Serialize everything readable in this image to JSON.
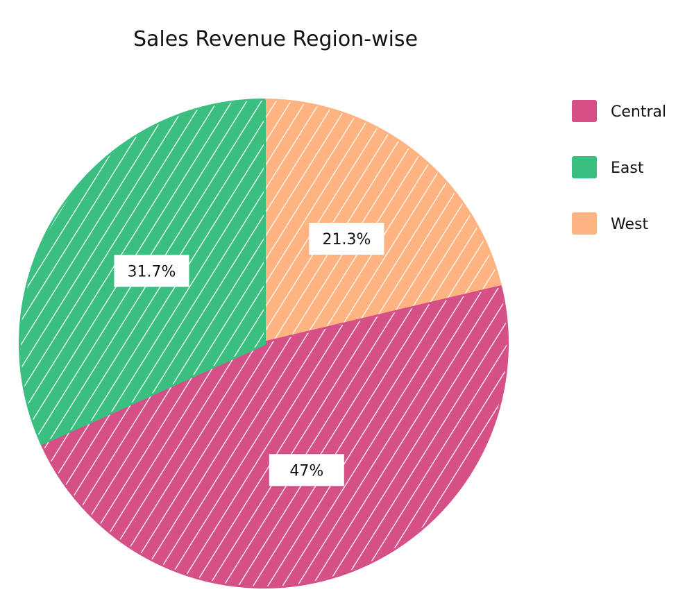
{
  "chart_data": {
    "type": "pie",
    "title": "Sales Revenue Region-wise",
    "slices": [
      {
        "label": "Central",
        "value": 47,
        "display": "47%",
        "color": "#D45087"
      },
      {
        "label": "East",
        "value": 31.7,
        "display": "31.7%",
        "color": "#3BBF80"
      },
      {
        "label": "West",
        "value": 21.3,
        "display": "21.3%",
        "color": "#FFB380"
      }
    ],
    "legend": {
      "position": "top-right",
      "items": [
        {
          "label": "Central",
          "color": "#D45087"
        },
        {
          "label": "East",
          "color": "#3BBF80"
        },
        {
          "label": "West",
          "color": "#FFB380"
        }
      ]
    }
  }
}
